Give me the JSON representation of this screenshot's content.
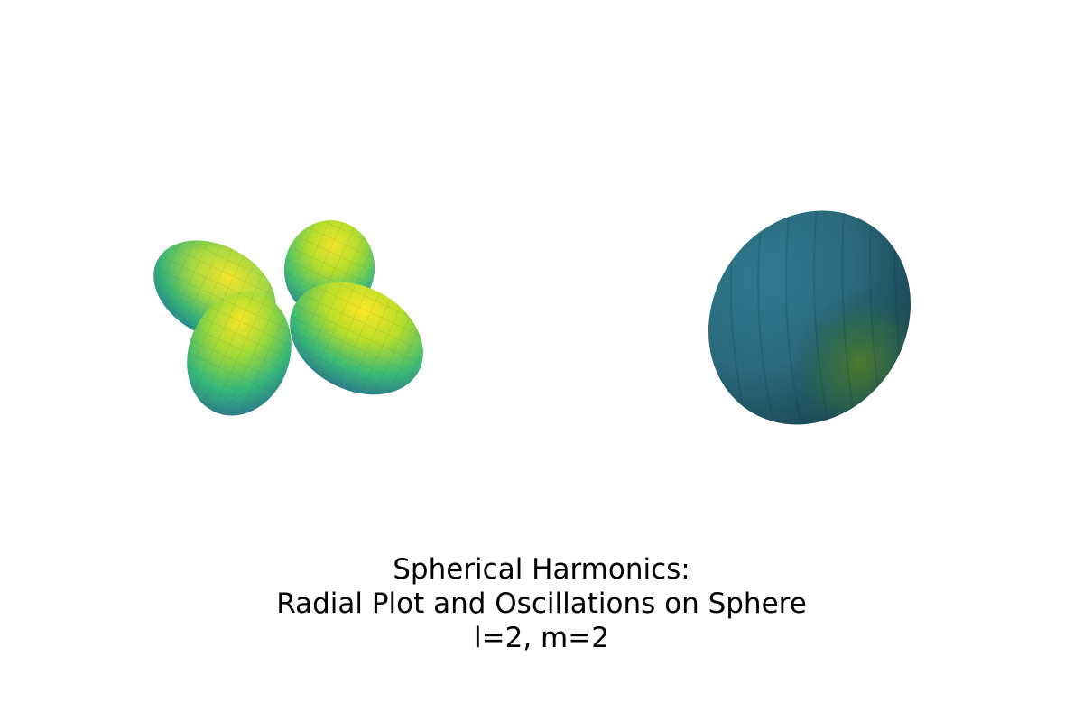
{
  "figure": {
    "title_lines": [
      "Spherical Harmonics:",
      "Radial Plot and Oscillations on Sphere",
      "l=2, m=2"
    ],
    "l": 2,
    "m": 2,
    "colormap": "viridis",
    "colors": {
      "background": "#ffffff",
      "viridis_low": "#440154",
      "viridis_mid": "#21918c",
      "viridis_high": "#fde725",
      "sphere_base": "#2a6f7f",
      "sphere_shadow": "#173e4b",
      "sphere_highlight": "#3c7f3a"
    },
    "panels": [
      "radial-plot",
      "sphere-oscillation"
    ]
  }
}
